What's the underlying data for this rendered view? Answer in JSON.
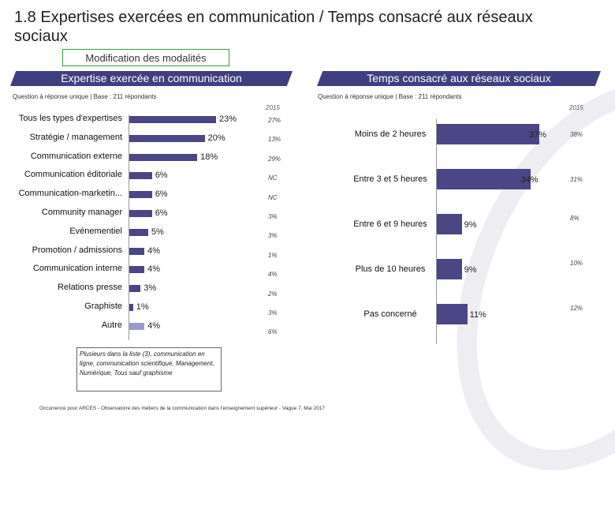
{
  "slide": {
    "title": "1.8 Expertises exercées en communication / Temps consacré aux réseaux sociaux",
    "modification_label": "Modification des modalités",
    "note": "Plusieurs dans la liste (3), communication en ligne, communication scientifique, Management, Numérique, Tous sauf graphisme",
    "footer": "Occurrence pour ARCES - Observatoire des métiers de la communication dans l'enseignement supérieur - Vague 7, Mai 2017"
  },
  "chart_data": [
    {
      "type": "bar",
      "orientation": "horizontal",
      "title": "Expertise exercée en communication",
      "subtitle": "Question à réponse unique | Base : 211 répondants",
      "reference_label": "2015",
      "categories": [
        "Tous les types d'expertises",
        "Stratégie / management",
        "Communication externe",
        "Communication éditoriale",
        "Communication-marketin...",
        "Community manager",
        "Evénementiel",
        "Promotion / admissions",
        "Communication interne",
        "Relations presse",
        "Graphiste",
        "Autre"
      ],
      "values": [
        23,
        20,
        18,
        6,
        6,
        6,
        5,
        4,
        4,
        3,
        1,
        4
      ],
      "value_labels": [
        "23%",
        "20%",
        "18%",
        "6%",
        "6%",
        "6%",
        "5%",
        "4%",
        "4%",
        "3%",
        "1%",
        "4%"
      ],
      "reference_values": [
        "27%",
        "13%",
        "29%",
        "NC",
        "NC",
        "3%",
        "3%",
        "1%",
        "4%",
        "2%",
        "3%",
        "6%"
      ],
      "xlim": [
        0,
        25
      ],
      "colors": {
        "main": "#4b4685",
        "other": "#9b9bc9"
      }
    },
    {
      "type": "bar",
      "orientation": "horizontal",
      "title": "Temps consacré aux réseaux sociaux",
      "subtitle": "Question à réponse unique | Base : 211 répondants",
      "reference_label": "2015",
      "categories": [
        "Moins de 2 heures",
        "Entre 3 et 5 heures",
        "Entre 6 et 9 heures",
        "Plus de 10 heures",
        "Pas concerné"
      ],
      "values": [
        37,
        34,
        9,
        9,
        11
      ],
      "value_labels": [
        "37%",
        "34%",
        "9%",
        "9%",
        "11%"
      ],
      "reference_values": [
        "38%",
        "31%",
        "8%",
        "10%",
        "12%"
      ],
      "xlim": [
        0,
        40
      ],
      "colors": {
        "main": "#4b4685"
      }
    }
  ]
}
